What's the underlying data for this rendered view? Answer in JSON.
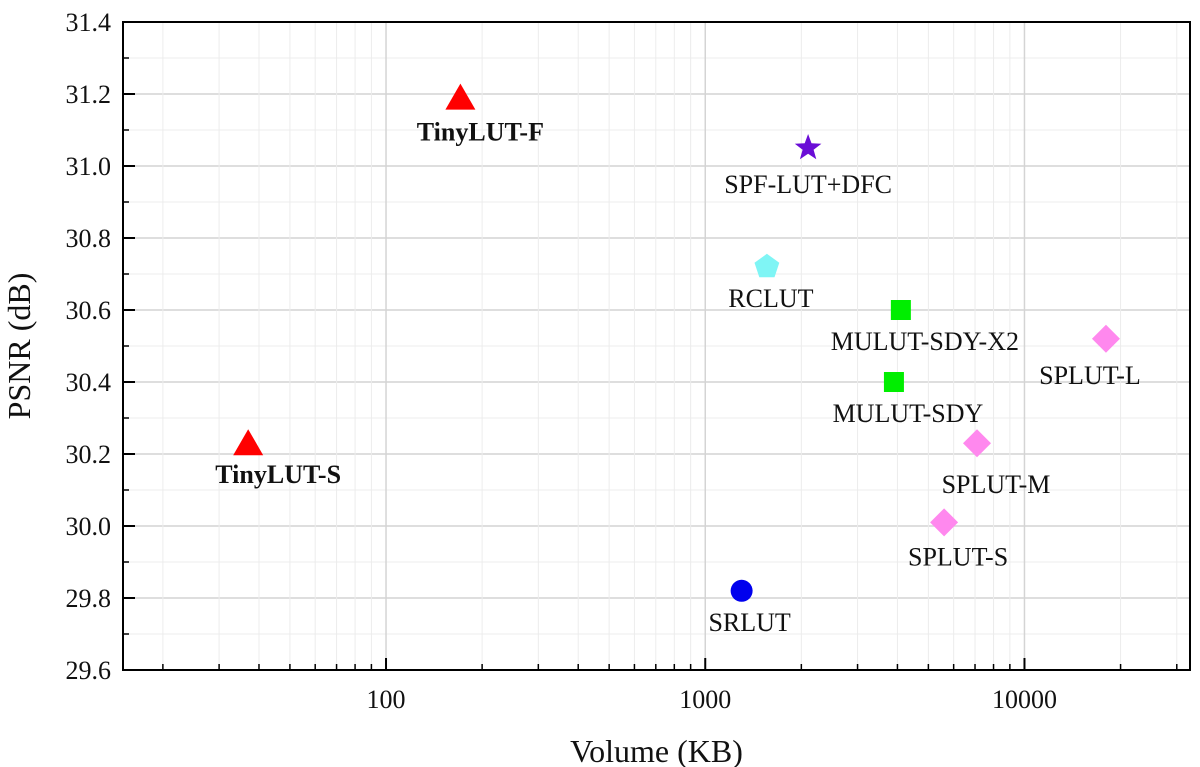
{
  "chart_data": {
    "type": "scatter",
    "xlabel": "Volume (KB)",
    "ylabel": "PSNR (dB)",
    "x_scale": "log",
    "xlim": [
      15,
      33000
    ],
    "ylim": [
      29.6,
      31.4
    ],
    "x_ticks": [
      100,
      1000,
      10000
    ],
    "x_tick_labels": [
      "100",
      "1000",
      "10000"
    ],
    "y_ticks": [
      29.6,
      29.8,
      30.0,
      30.2,
      30.4,
      30.6,
      30.8,
      31.0,
      31.2,
      31.4
    ],
    "y_tick_labels": [
      "29.6",
      "29.8",
      "30.0",
      "30.2",
      "30.4",
      "30.6",
      "30.8",
      "31.0",
      "31.2",
      "31.4"
    ],
    "grid": true,
    "points": [
      {
        "label": "TinyLUT-F",
        "x": 171,
        "y": 31.19,
        "marker": "triangle",
        "color": "#ff0000",
        "bold": true
      },
      {
        "label": "TinyLUT-S",
        "x": 37,
        "y": 30.23,
        "marker": "triangle",
        "color": "#ff0000",
        "bold": true
      },
      {
        "label": "SPF-LUT+DFC",
        "x": 2100,
        "y": 31.05,
        "marker": "star",
        "color": "#6a0dd6",
        "bold": false
      },
      {
        "label": "RCLUT",
        "x": 1560,
        "y": 30.72,
        "marker": "pentagon",
        "color": "#7ff5f5",
        "bold": false
      },
      {
        "label": "MULUT-SDY-X2",
        "x": 4100,
        "y": 30.6,
        "marker": "square",
        "color": "#00ee00",
        "bold": false
      },
      {
        "label": "MULUT-SDY",
        "x": 3900,
        "y": 30.4,
        "marker": "square",
        "color": "#00ee00",
        "bold": false
      },
      {
        "label": "SPLUT-L",
        "x": 18000,
        "y": 30.52,
        "marker": "diamond",
        "color": "#ff88ee",
        "bold": false
      },
      {
        "label": "SPLUT-M",
        "x": 7100,
        "y": 30.23,
        "marker": "diamond",
        "color": "#ff88ee",
        "bold": false
      },
      {
        "label": "SPLUT-S",
        "x": 5600,
        "y": 30.01,
        "marker": "diamond",
        "color": "#ff88ee",
        "bold": false
      },
      {
        "label": "SRLUT",
        "x": 1300,
        "y": 29.82,
        "marker": "circle",
        "color": "#0000ee",
        "bold": false
      }
    ]
  }
}
